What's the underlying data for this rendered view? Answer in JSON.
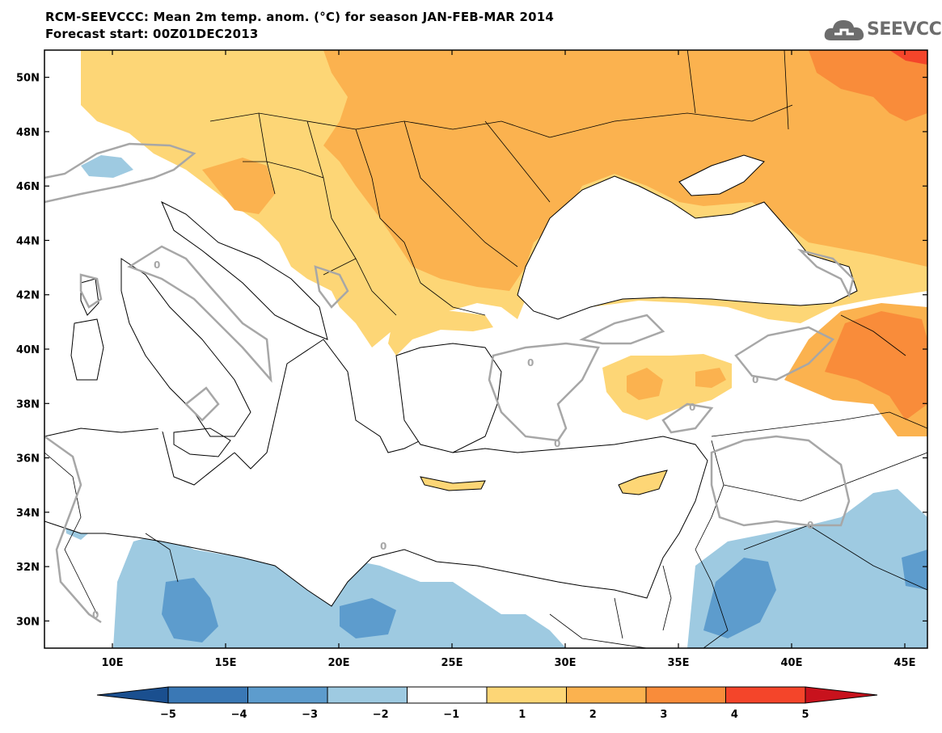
{
  "header": {
    "title_line1": "RCM-SEEVCCC: Mean 2m temp. anom. (°C) for season JAN-FEB-MAR 2014",
    "title_line2": "Forecast start: 00Z01DEC2013"
  },
  "logo": {
    "text": "SEEVCCC",
    "icon": "cloud-logo-icon"
  },
  "map": {
    "lon_range": [
      7,
      46
    ],
    "lat_range": [
      29,
      51
    ],
    "lat_ticks": [
      "50N",
      "48N",
      "46N",
      "44N",
      "42N",
      "40N",
      "38N",
      "36N",
      "34N",
      "32N",
      "30N"
    ],
    "lon_ticks": [
      "10E",
      "15E",
      "20E",
      "25E",
      "30E",
      "35E",
      "40E",
      "45E"
    ],
    "contour_label": "0"
  },
  "colorbar": {
    "labels": [
      "−5",
      "−4",
      "−3",
      "−2",
      "−1",
      "1",
      "2",
      "3",
      "4",
      "5"
    ],
    "colors": [
      "#1a4f8f",
      "#3a78b5",
      "#5d9ccd",
      "#9ecae1",
      "#ffffff",
      "#fdd676",
      "#fbb24f",
      "#f98c3a",
      "#f4452a",
      "#c8121d"
    ]
  },
  "palette": {
    "orange_light": "#fdd676",
    "orange_mid": "#fbb24f",
    "orange_dark": "#f98c3a",
    "red": "#f4452a",
    "blue_light": "#9ecae1",
    "blue_mid": "#5d9ccd",
    "contour_gray": "#a7a7a7"
  }
}
